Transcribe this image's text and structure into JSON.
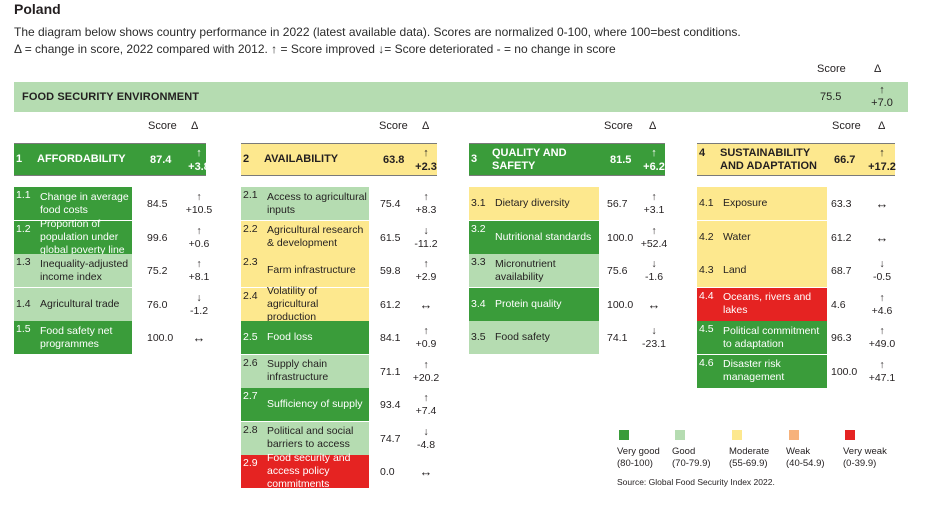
{
  "title": "Poland",
  "intro_line1": "The diagram below shows country performance in 2022 (latest available data). Scores are normalized 0-100, where 100=best conditions.",
  "intro_line2": "Δ = change in score, 2022 compared with 2012. ↑ = Score improved ↓= Score deteriorated  - = no change in score",
  "score_header": "Score",
  "delta_header": "Δ",
  "environment": {
    "label": "FOOD SECURITY ENVIRONMENT",
    "score": "75.5",
    "arrow": "↑",
    "change": "+7.0",
    "level": "good"
  },
  "categories": [
    {
      "num": "1",
      "label": "AFFORDABILITY",
      "score": "87.4",
      "arrow": "↑",
      "change": "+3.8",
      "level": "vgood",
      "indicators": [
        {
          "num": "1.1",
          "label": "Change in average food costs",
          "score": "84.5",
          "arrow": "↑",
          "change": "+10.5",
          "level": "vgood"
        },
        {
          "num": "1.2",
          "label": "Proportion of population under global poverty line",
          "score": "99.6",
          "arrow": "↑",
          "change": "+0.6",
          "level": "vgood"
        },
        {
          "num": "1.3",
          "label": "Inequality-adjusted income index",
          "score": "75.2",
          "arrow": "↑",
          "change": "+8.1",
          "level": "good"
        },
        {
          "num": "1.4",
          "label": "Agricultural trade",
          "score": "76.0",
          "arrow": "↓",
          "change": "-1.2",
          "level": "good"
        },
        {
          "num": "1.5",
          "label": "Food safety net programmes",
          "score": "100.0",
          "arrow": "↔",
          "change": "",
          "level": "vgood"
        }
      ]
    },
    {
      "num": "2",
      "label": "AVAILABILITY",
      "score": "63.8",
      "arrow": "↑",
      "change": "+2.3",
      "level": "moderate",
      "indicators": [
        {
          "num": "2.1",
          "label": "Access to agricultural inputs",
          "score": "75.4",
          "arrow": "↑",
          "change": "+8.3",
          "level": "good"
        },
        {
          "num": "2.2",
          "label": "Agricultural research & development",
          "score": "61.5",
          "arrow": "↓",
          "change": "-11.2",
          "level": "moderate"
        },
        {
          "num": "2.3",
          "label": "Farm infrastructure",
          "score": "59.8",
          "arrow": "↑",
          "change": "+2.9",
          "level": "moderate"
        },
        {
          "num": "2.4",
          "label": "Volatility of agricultural production",
          "score": "61.2",
          "arrow": "↔",
          "change": "",
          "level": "moderate"
        },
        {
          "num": "2.5",
          "label": "Food loss",
          "score": "84.1",
          "arrow": "↑",
          "change": "+0.9",
          "level": "vgood"
        },
        {
          "num": "2.6",
          "label": "Supply chain infrastructure",
          "score": "71.1",
          "arrow": "↑",
          "change": "+20.2",
          "level": "good"
        },
        {
          "num": "2.7",
          "label": "Sufficiency of supply",
          "score": "93.4",
          "arrow": "↑",
          "change": "+7.4",
          "level": "vgood"
        },
        {
          "num": "2.8",
          "label": "Political and social barriers to access",
          "score": "74.7",
          "arrow": "↓",
          "change": "-4.8",
          "level": "good"
        },
        {
          "num": "2.9",
          "label": "Food security and access policy commitments",
          "score": "0.0",
          "arrow": "↔",
          "change": "",
          "level": "vweak"
        }
      ]
    },
    {
      "num": "3",
      "label": "QUALITY AND SAFETY",
      "score": "81.5",
      "arrow": "↑",
      "change": "+6.2",
      "level": "vgood",
      "indicators": [
        {
          "num": "3.1",
          "label": "Dietary diversity",
          "score": "56.7",
          "arrow": "↑",
          "change": "+3.1",
          "level": "moderate"
        },
        {
          "num": "3.2",
          "label": "Nutritional standards",
          "score": "100.0",
          "arrow": "↑",
          "change": "+52.4",
          "level": "vgood"
        },
        {
          "num": "3.3",
          "label": "Micronutrient availability",
          "score": "75.6",
          "arrow": "↓",
          "change": "-1.6",
          "level": "good"
        },
        {
          "num": "3.4",
          "label": "Protein quality",
          "score": "100.0",
          "arrow": "↔",
          "change": "",
          "level": "vgood"
        },
        {
          "num": "3.5",
          "label": "Food safety",
          "score": "74.1",
          "arrow": "↓",
          "change": "-23.1",
          "level": "good"
        }
      ]
    },
    {
      "num": "4",
      "label": "SUSTAINABILITY AND ADAPTATION",
      "score": "66.7",
      "arrow": "↑",
      "change": "+17.2",
      "level": "moderate",
      "indicators": [
        {
          "num": "4.1",
          "label": "Exposure",
          "score": "63.3",
          "arrow": "↔",
          "change": "",
          "level": "moderate"
        },
        {
          "num": "4.2",
          "label": "Water",
          "score": "61.2",
          "arrow": "↔",
          "change": "",
          "level": "moderate"
        },
        {
          "num": "4.3",
          "label": "Land",
          "score": "68.7",
          "arrow": "↓",
          "change": "-0.5",
          "level": "moderate"
        },
        {
          "num": "4.4",
          "label": "Oceans, rivers and lakes",
          "score": "4.6",
          "arrow": "↑",
          "change": "+4.6",
          "level": "vweak"
        },
        {
          "num": "4.5",
          "label": "Political commitment to adaptation",
          "score": "96.3",
          "arrow": "↑",
          "change": "+49.0",
          "level": "vgood"
        },
        {
          "num": "4.6",
          "label": "Disaster risk management",
          "score": "100.0",
          "arrow": "↑",
          "change": "+47.1",
          "level": "vgood"
        }
      ]
    }
  ],
  "legend": [
    {
      "name": "Very good",
      "range": "(80-100)",
      "color": "#3a9c3a"
    },
    {
      "name": "Good",
      "range": "(70-79.9)",
      "color": "#b5dcb1"
    },
    {
      "name": "Moderate",
      "range": "(55-69.9)",
      "color": "#fde88e"
    },
    {
      "name": "Weak",
      "range": "(40-54.9)",
      "color": "#f7b27b"
    },
    {
      "name": "Very weak",
      "range": "(0-39.9)",
      "color": "#e52322"
    }
  ],
  "source": "Source: Global Food Security Index 2022."
}
